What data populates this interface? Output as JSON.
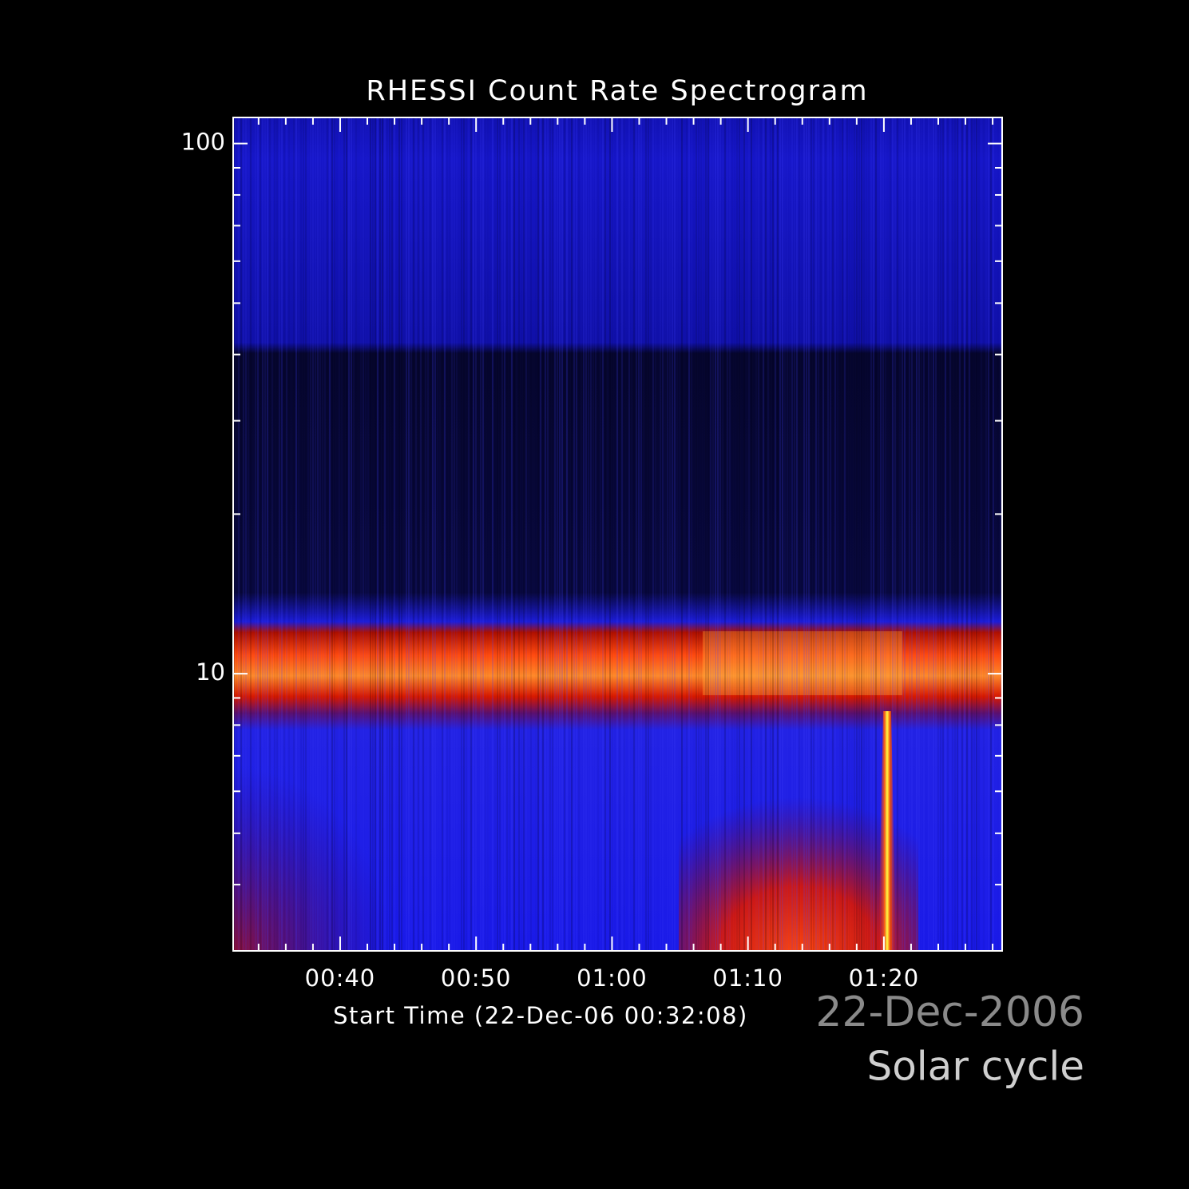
{
  "chart_data": {
    "type": "spectrogram",
    "title": "RHESSI Count Rate Spectrogram",
    "x_label": "Start Time (22-Dec-06 00:32:08)",
    "xlim": [
      32.13,
      88.7
    ],
    "xticks": [
      {
        "value": 40,
        "label": "00:40"
      },
      {
        "value": 50,
        "label": "00:50"
      },
      {
        "value": 60,
        "label": "01:00"
      },
      {
        "value": 70,
        "label": "01:10"
      },
      {
        "value": 80,
        "label": "01:20"
      }
    ],
    "xminorticks": [
      34,
      36,
      38,
      42,
      44,
      46,
      48,
      52,
      54,
      56,
      58,
      62,
      64,
      66,
      68,
      72,
      74,
      76,
      78,
      82,
      84,
      86,
      88
    ],
    "ylim": [
      3,
      112
    ],
    "yscale": "log",
    "yticks": [
      10,
      100
    ],
    "yminorticks": [
      4,
      5,
      6,
      7,
      8,
      9,
      20,
      30,
      40,
      50,
      60,
      70,
      80,
      90
    ],
    "annotations": [
      "22-Dec-2006",
      "Solar cycle"
    ]
  }
}
